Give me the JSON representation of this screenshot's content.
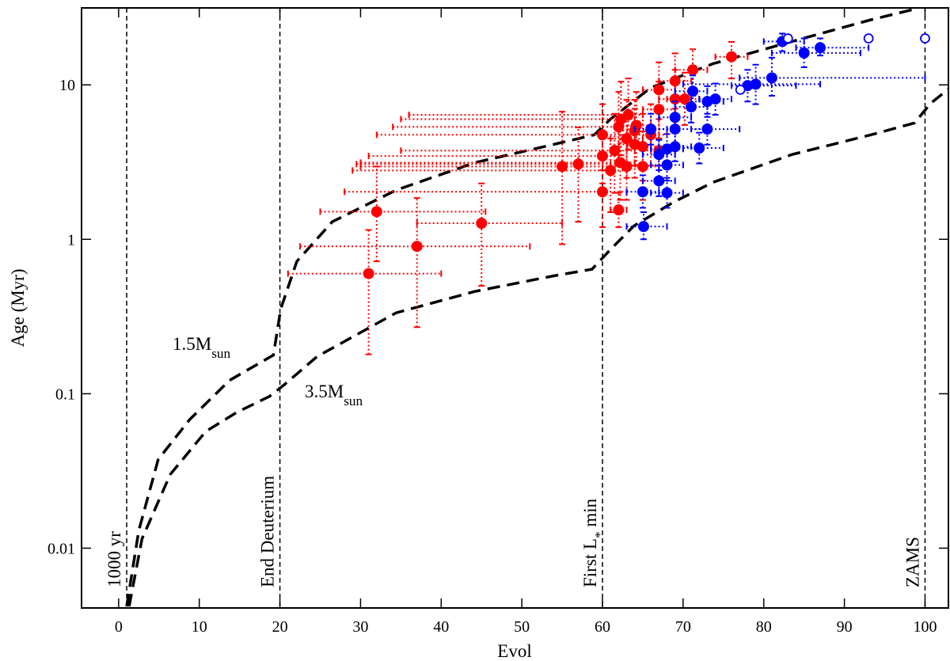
{
  "chart_data": {
    "type": "scatter",
    "x_label": "Evol",
    "y_label": "Age (Myr)",
    "xlim": [
      -4.6,
      102.9
    ],
    "ylim": [
      0.0041,
      31.5
    ],
    "xticks": [
      0,
      10,
      20,
      30,
      40,
      50,
      60,
      70,
      80,
      90,
      100
    ],
    "yticks": [
      0.01,
      0.1,
      1,
      10
    ],
    "log_y": true,
    "series": [
      {
        "color": "#ff0000",
        "marker": "filled",
        "x": [
          31,
          32,
          37,
          45,
          55,
          57,
          60,
          60,
          60,
          61,
          61.5,
          62,
          62.2,
          62,
          62.3,
          63,
          63.2,
          63,
          64,
          64,
          64.2,
          65,
          65,
          66,
          67,
          67,
          67,
          69,
          69,
          70.2,
          71.2,
          76
        ],
        "values": [
          0.6,
          1.51,
          0.9,
          1.27,
          2.96,
          3.07,
          2.03,
          3.46,
          4.75,
          2.79,
          3.75,
          5.35,
          3.14,
          1.55,
          6.0,
          4.48,
          6.4,
          2.96,
          5.04,
          4.12,
          5.47,
          2.96,
          3.98,
          4.75,
          6.93,
          9.3,
          3.75,
          10.6,
          8.1,
          8.1,
          12.5,
          15.2
        ],
        "x_low": [
          21,
          25,
          22.5,
          37,
          30,
          29.5,
          28,
          31,
          32,
          29,
          35,
          34,
          30,
          61,
          35,
          61,
          36,
          61,
          62,
          62,
          62,
          63,
          63,
          64,
          65,
          65,
          65,
          67,
          67,
          68,
          69,
          74
        ],
        "x_high": [
          40,
          45.5,
          51,
          55,
          61,
          61,
          63,
          62,
          63,
          63,
          64,
          64,
          64,
          63,
          64,
          65,
          65,
          65,
          66,
          66,
          66,
          67,
          67,
          68,
          69,
          69,
          69,
          71,
          71,
          72,
          73,
          78
        ],
        "y_low": [
          0.18,
          0.72,
          0.27,
          0.5,
          0.93,
          1.3,
          1.2,
          2.3,
          2.8,
          1.5,
          2.0,
          3.0,
          1.8,
          1.2,
          3.5,
          2.5,
          3.8,
          1.8,
          3,
          2.5,
          3,
          1.8,
          2.4,
          3,
          4.5,
          6,
          2.4,
          7,
          5,
          5.5,
          8.5,
          11
        ],
        "y_high": [
          1.15,
          2.96,
          1.85,
          2.3,
          6.7,
          5.3,
          3.3,
          5.0,
          7.5,
          4.5,
          6.5,
          9.0,
          5.2,
          2.0,
          10.5,
          8.0,
          11,
          4.5,
          8,
          7,
          9,
          5,
          6.5,
          7.5,
          10.5,
          14,
          6,
          16,
          12.5,
          12,
          17,
          19
        ]
      },
      {
        "color": "#0000ff",
        "marker": "filled",
        "x": [
          65.1,
          65,
          67,
          68,
          68,
          68,
          69,
          69,
          69,
          66,
          67,
          71,
          71.2,
          73,
          74,
          72,
          73,
          78,
          79,
          81,
          82.3,
          85,
          87
        ],
        "values": [
          1.21,
          2.03,
          2.39,
          2.0,
          3.03,
          3.84,
          3.98,
          5.17,
          6.16,
          5.17,
          3.54,
          7.2,
          9.1,
          7.8,
          8.1,
          3.9,
          5.17,
          9.9,
          10.1,
          11.1,
          19.1,
          16.1,
          17.4
        ],
        "x_low": [
          63,
          63,
          65,
          66,
          66,
          66,
          67,
          66,
          67,
          64,
          65,
          69,
          69,
          71,
          72,
          70,
          71,
          76,
          70,
          77,
          80,
          81,
          84
        ],
        "x_high": [
          68,
          67,
          69,
          70,
          70,
          70,
          71,
          73,
          71,
          68,
          69,
          73,
          73,
          75,
          76,
          75,
          77,
          84,
          87,
          100,
          85,
          92,
          93
        ],
        "y_low": [
          1.0,
          1.6,
          1.9,
          1.6,
          2.4,
          3.0,
          3.2,
          4.1,
          4.9,
          4.1,
          2.8,
          5.7,
          7.2,
          6.2,
          6.4,
          3.1,
          4.1,
          7.8,
          7.5,
          8.5,
          16.5,
          13,
          15.5
        ],
        "y_high": [
          1.5,
          2.6,
          3.0,
          2.5,
          3.8,
          4.8,
          5.0,
          6.5,
          7.8,
          6.5,
          4.4,
          9.0,
          11.5,
          9.8,
          10.2,
          4.9,
          6.5,
          12.5,
          13.5,
          15,
          21.5,
          20,
          20
        ]
      },
      {
        "color": "#0000ff",
        "marker": "open",
        "x": [
          77.1,
          83,
          93,
          100
        ],
        "values": [
          9.3,
          20,
          20,
          20
        ]
      }
    ],
    "tracks": [
      {
        "label": {
          "text": "1.5M",
          "sub": "sun"
        },
        "x": [
          1,
          2.5,
          4.9,
          8.8,
          13.75,
          19.2,
          20.1,
          22.1,
          26.5,
          34.4,
          44.2,
          54,
          59,
          61,
          66,
          73.7,
          83.5,
          93.3,
          99.2
        ],
        "values": [
          0.0042,
          0.013,
          0.0375,
          0.068,
          0.122,
          0.178,
          0.354,
          0.72,
          1.3,
          2.08,
          3.14,
          4.12,
          4.75,
          6.0,
          9.6,
          13.7,
          19.1,
          26.4,
          31.4
        ]
      },
      {
        "label": {
          "text": "3.5M",
          "sub": "sun"
        },
        "x": [
          1.3,
          2.9,
          6.4,
          10.8,
          14.7,
          18.7,
          20.6,
          24.6,
          34.4,
          44.2,
          54,
          58.7,
          61,
          63.9,
          68.8,
          73.7,
          83.5,
          93.3,
          98.7,
          100.7,
          102.9
        ],
        "values": [
          0.0042,
          0.0115,
          0.03,
          0.057,
          0.076,
          0.096,
          0.115,
          0.174,
          0.334,
          0.46,
          0.58,
          0.64,
          0.86,
          1.22,
          1.74,
          2.34,
          3.54,
          4.75,
          5.67,
          7.6,
          9.4
        ]
      }
    ],
    "vlines": [
      {
        "x": 1,
        "label": {
          "text": "1000 yr"
        }
      },
      {
        "x": 20,
        "label": {
          "text": "End Deuterium"
        }
      },
      {
        "x": 60,
        "label": {
          "text": "First L",
          "sub": "*",
          "after": " min"
        }
      },
      {
        "x": 100,
        "label": {
          "text": "ZAMS"
        }
      }
    ]
  }
}
